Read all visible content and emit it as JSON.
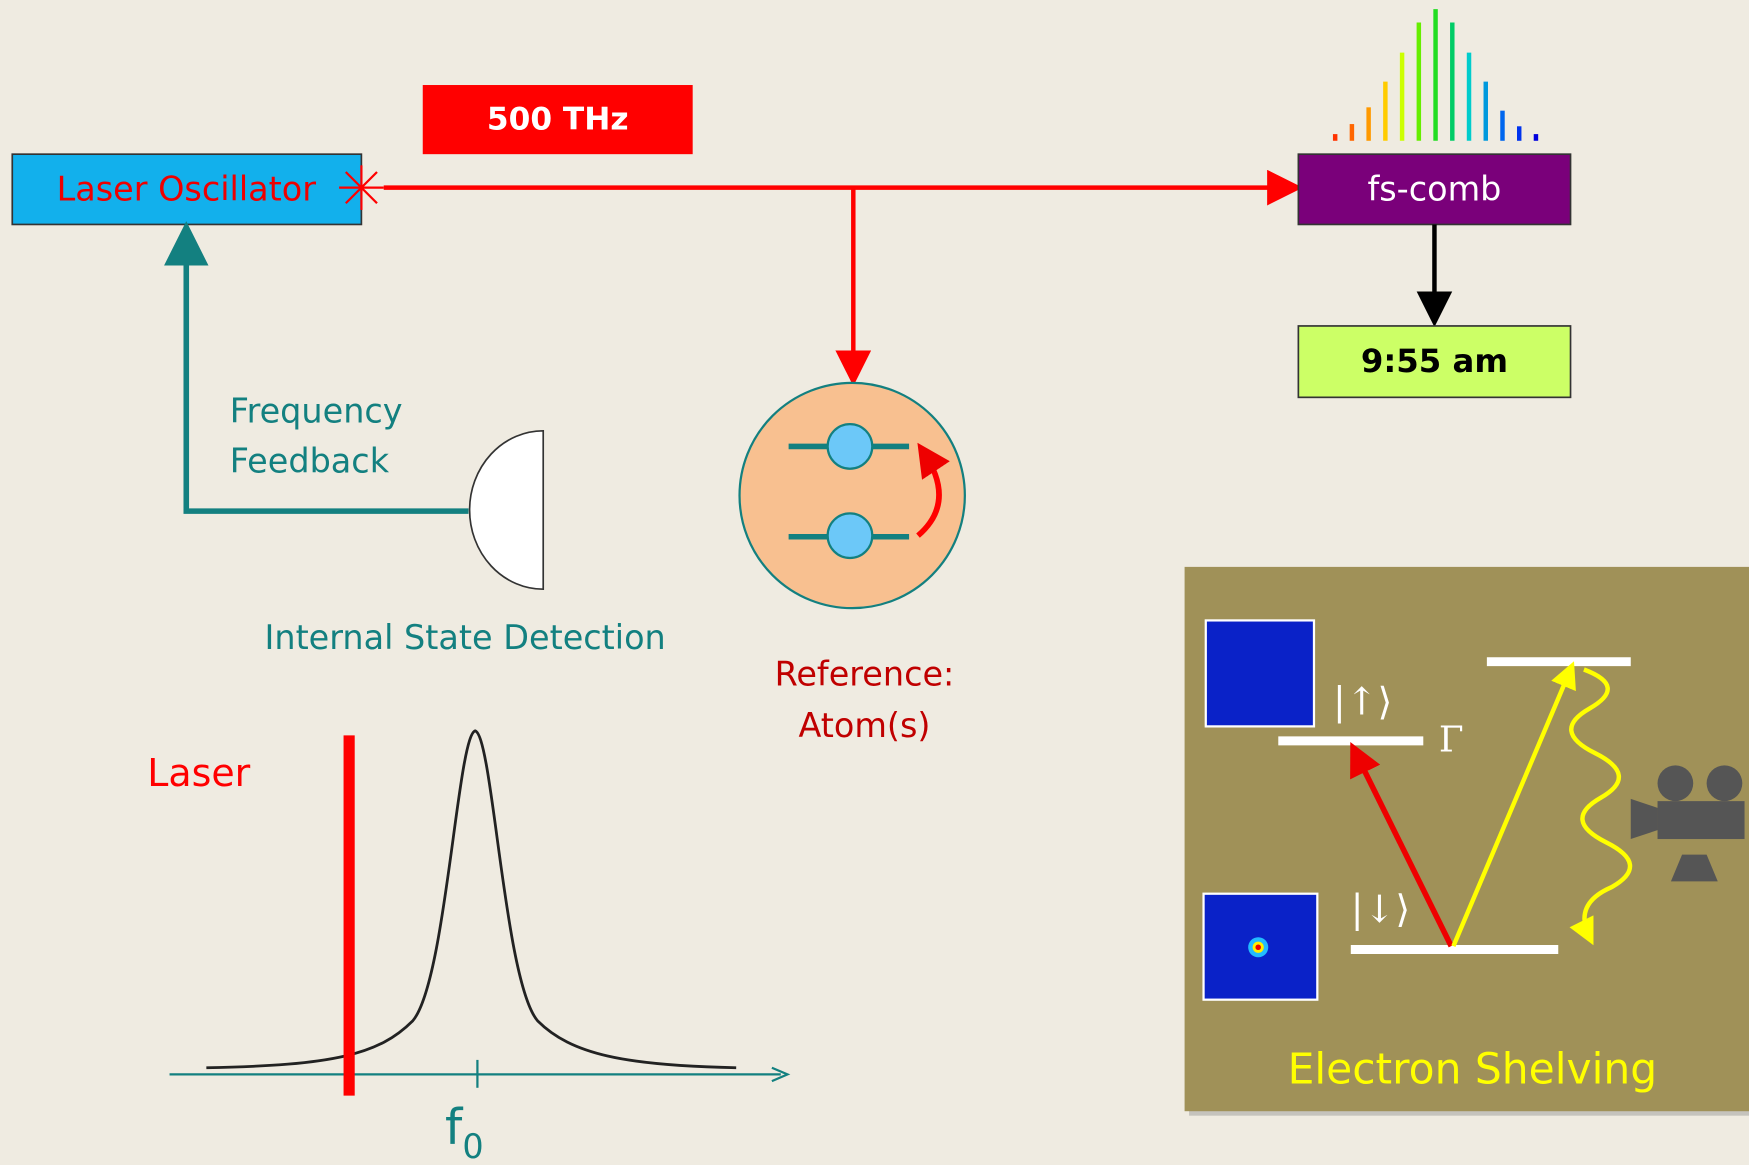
{
  "banner": "500 THz",
  "laser_oscillator": "Laser Oscillator",
  "comb": "fs-comb",
  "clock": "9:55 am",
  "feedback": [
    "Frequency",
    "Feedback"
  ],
  "detection": "Internal State Detection",
  "reference": [
    "Reference:",
    "Atom(s)"
  ],
  "spectrum": {
    "laser_label": "Laser",
    "center_label": "f",
    "center_subscript": "0"
  },
  "shelving": {
    "title": "Electron Shelving",
    "upper_state": "|↑⟩",
    "lower_state": "|↓⟩",
    "linewidth": "Γ"
  }
}
